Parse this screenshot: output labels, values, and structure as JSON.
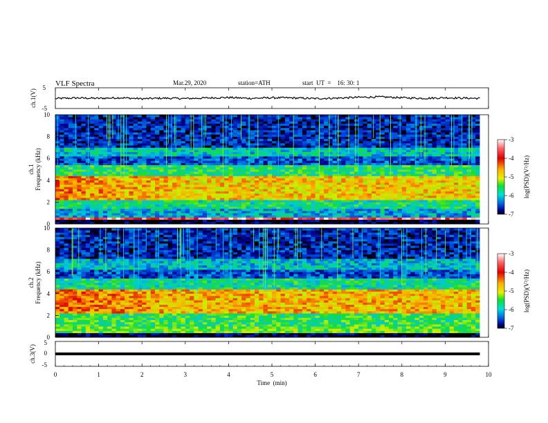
{
  "header": {
    "title": "VLF  Spectra",
    "date": "Mar.29, 2020",
    "station": "station=ATH",
    "start_ut": "start  UT  =    16: 30: 1"
  },
  "chart_data": [
    {
      "type": "line",
      "panel": "ch1_waveform",
      "ylabel": "ch.1(V)",
      "ylim": [
        -5,
        5
      ],
      "yticks": [
        "5",
        "-5"
      ],
      "xlim": [
        0,
        10
      ],
      "x": [
        0,
        0.5,
        1,
        1.5,
        2,
        2.5,
        3,
        3.5,
        4,
        4.5,
        5,
        5.5,
        6,
        6.5,
        7,
        7.5,
        8,
        8.5,
        9,
        9.5,
        9.8
      ],
      "y": [
        -0.2,
        0.1,
        -0.1,
        0.2,
        -0.3,
        0.0,
        -0.2,
        0.1,
        0.3,
        -0.1,
        0.2,
        0.1,
        -0.2,
        0.0,
        0.4,
        0.6,
        0.2,
        -0.1,
        0.2,
        0.0,
        -0.1
      ]
    },
    {
      "type": "heatmap",
      "panel": "ch1_spectrogram",
      "ylabel": "ch.1\nFrequency  (kHz)",
      "ylim": [
        0,
        10
      ],
      "yticks": [
        "0",
        "2",
        "4",
        "6",
        "8",
        "10"
      ],
      "xlim": [
        0,
        10
      ],
      "colorbar": {
        "label": "log(PSD)(V²/Hz)",
        "ticks": [
          "-3",
          "-4",
          "-5",
          "-6",
          "-7"
        ],
        "range": [
          -7,
          -3
        ]
      },
      "bands": [
        {
          "f": [
            0,
            0.4
          ],
          "level": -7
        },
        {
          "f": [
            0.4,
            0.7
          ],
          "level": -3.4
        },
        {
          "f": [
            0.7,
            1.5
          ],
          "level": -6.0
        },
        {
          "f": [
            1.5,
            2.2
          ],
          "level": -5.6
        },
        {
          "f": [
            2.2,
            4.4
          ],
          "level": -4.6
        },
        {
          "f": [
            4.4,
            5.4
          ],
          "level": -5.5
        },
        {
          "f": [
            5.4,
            6.2
          ],
          "level": -6.4
        },
        {
          "f": [
            6.2,
            7.0
          ],
          "level": -5.8
        },
        {
          "f": [
            7.0,
            10.0
          ],
          "level": -6.6
        }
      ]
    },
    {
      "type": "heatmap",
      "panel": "ch2_spectrogram",
      "ylabel": "ch.2\nFrequency  (kHz)",
      "ylim": [
        0,
        10
      ],
      "yticks": [
        "0",
        "2",
        "4",
        "6",
        "8",
        "10"
      ],
      "xlim": [
        0,
        10
      ],
      "colorbar": {
        "label": "log(PSD)(V²/Hz)",
        "ticks": [
          "-3",
          "-4",
          "-5",
          "-6",
          "-7"
        ],
        "range": [
          -7,
          -3
        ]
      },
      "bands": [
        {
          "f": [
            0,
            0.4
          ],
          "level": -7
        },
        {
          "f": [
            0.4,
            1.0
          ],
          "level": -5.2
        },
        {
          "f": [
            1.0,
            2.3
          ],
          "level": -5.4
        },
        {
          "f": [
            2.3,
            4.5
          ],
          "level": -4.5
        },
        {
          "f": [
            4.5,
            5.5
          ],
          "level": -5.6
        },
        {
          "f": [
            5.5,
            6.3
          ],
          "level": -6.4
        },
        {
          "f": [
            6.3,
            7.2
          ],
          "level": -5.9
        },
        {
          "f": [
            7.2,
            10.0
          ],
          "level": -6.6
        }
      ]
    },
    {
      "type": "line",
      "panel": "ch3_waveform",
      "ylabel": "ch.3(V)",
      "ylim": [
        -5,
        5
      ],
      "yticks": [
        "5",
        "0",
        "-5"
      ],
      "xlim": [
        0,
        10
      ],
      "x": [
        0,
        9.8
      ],
      "y": [
        0,
        0
      ]
    }
  ],
  "xaxis": {
    "label": "Time  (min)",
    "ticks": [
      "0",
      "1",
      "2",
      "3",
      "4",
      "5",
      "6",
      "7",
      "8",
      "9",
      "10"
    ]
  }
}
